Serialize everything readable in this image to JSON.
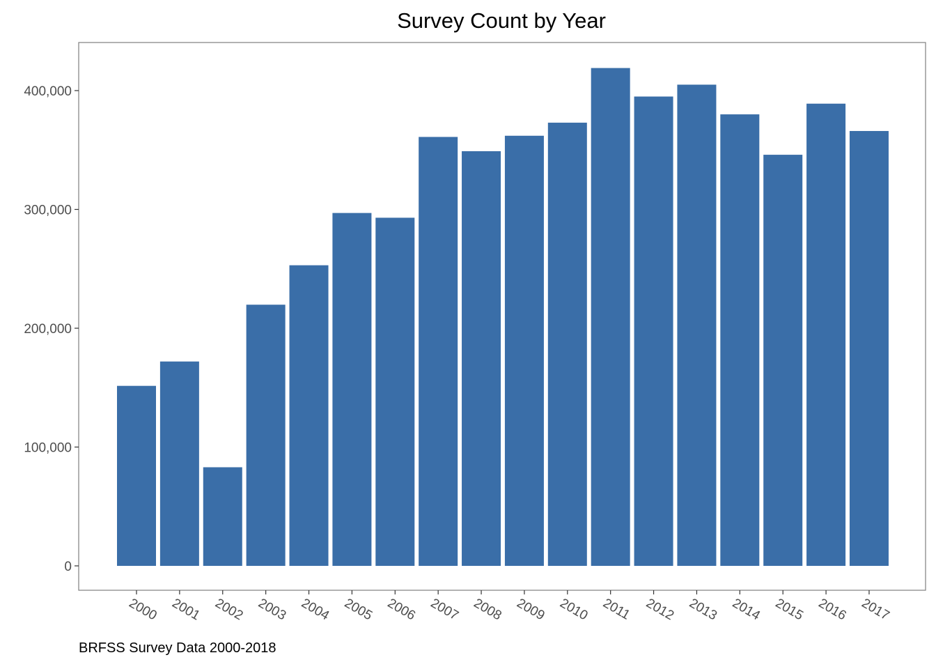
{
  "chart_data": {
    "type": "bar",
    "title": "Survey Count by Year",
    "xlabel": "",
    "ylabel": "",
    "categories": [
      "2000",
      "2001",
      "2002",
      "2003",
      "2004",
      "2005",
      "2006",
      "2007",
      "2008",
      "2009",
      "2010",
      "2011",
      "2012",
      "2013",
      "2014",
      "2015",
      "2016",
      "2017"
    ],
    "values": [
      151500,
      172000,
      83000,
      219800,
      253000,
      297000,
      293000,
      361000,
      349000,
      362000,
      373000,
      419000,
      395000,
      405000,
      380000,
      346000,
      389000,
      366000
    ],
    "ylim": [
      -20000,
      440000
    ],
    "yticks": [
      0,
      100000,
      200000,
      300000,
      400000
    ],
    "ytick_labels": [
      "0",
      "100,000",
      "200,000",
      "300,000",
      "400,000"
    ],
    "grid": false,
    "bar_color": "#3a6ea8",
    "legend": "none",
    "caption": "BRFSS Survey Data 2000-2018"
  }
}
